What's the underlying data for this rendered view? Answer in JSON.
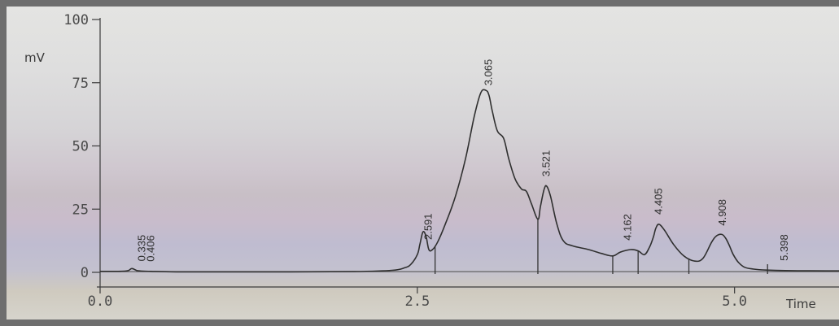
{
  "chart_data": {
    "type": "line",
    "ylabel": "mV",
    "xlabel": "Time",
    "xlim": [
      0.0,
      5.9
    ],
    "ylim": [
      0,
      100
    ],
    "x_ticks": [
      0.0,
      2.5,
      5.0
    ],
    "x_tick_labels": [
      "0.0",
      "2.5",
      "5.0"
    ],
    "y_ticks": [
      0,
      25,
      50,
      75,
      100
    ],
    "y_tick_labels": [
      "0",
      "25",
      "50",
      "75",
      "100"
    ],
    "grid": false,
    "series": [
      {
        "x": [
          0.0,
          0.2,
          0.25,
          0.3,
          0.4,
          0.6,
          1.0,
          1.5,
          2.0,
          2.3,
          2.4,
          2.45,
          2.5,
          2.52,
          2.545,
          2.57,
          2.591,
          2.62,
          2.66,
          2.72,
          2.8,
          2.88,
          2.95,
          3.0,
          3.04,
          3.065,
          3.09,
          3.13,
          3.18,
          3.22,
          3.27,
          3.32,
          3.36,
          3.4,
          3.45,
          3.47,
          3.5,
          3.521,
          3.55,
          3.6,
          3.65,
          3.72,
          3.85,
          3.95,
          4.04,
          4.1,
          4.18,
          4.24,
          4.29,
          4.33,
          4.36,
          4.38,
          4.405,
          4.45,
          4.52,
          4.6,
          4.68,
          4.75,
          4.82,
          4.86,
          4.9,
          4.93,
          4.96,
          4.99,
          5.03,
          5.08,
          5.15,
          5.25,
          5.4,
          5.6,
          5.9
        ],
        "y": [
          0.4,
          0.5,
          1.5,
          0.6,
          0.4,
          0.2,
          0.2,
          0.2,
          0.3,
          0.8,
          1.8,
          3.2,
          7,
          11,
          16,
          14,
          9,
          9,
          12,
          19,
          30,
          45,
          62,
          71,
          72,
          70,
          64,
          56,
          53,
          45,
          37,
          33,
          32,
          27,
          21,
          26,
          33,
          34,
          30,
          19,
          12.5,
          10.5,
          9,
          7.5,
          6.5,
          8,
          9,
          8.5,
          7,
          10,
          14,
          17.5,
          19,
          16.5,
          11,
          6.5,
          4.5,
          5.5,
          12,
          14.5,
          15,
          13.5,
          10.5,
          7,
          4,
          2,
          1.3,
          0.9,
          0.7,
          0.6,
          0.6
        ]
      }
    ],
    "peak_annotations": [
      {
        "x": 0.335,
        "label": "0.335"
      },
      {
        "x": 0.406,
        "label": "0.406"
      },
      {
        "x": 2.591,
        "label": "2.591"
      },
      {
        "x": 3.065,
        "label": "3.065"
      },
      {
        "x": 3.521,
        "label": "3.521"
      },
      {
        "x": 4.162,
        "label": "4.162"
      },
      {
        "x": 4.405,
        "label": "4.405"
      },
      {
        "x": 4.908,
        "label": "4.908"
      },
      {
        "x": 5.398,
        "label": "5.398"
      }
    ],
    "integration_marks": [
      2.64,
      3.45,
      4.04,
      4.24,
      4.64,
      5.26,
      5.9
    ]
  }
}
